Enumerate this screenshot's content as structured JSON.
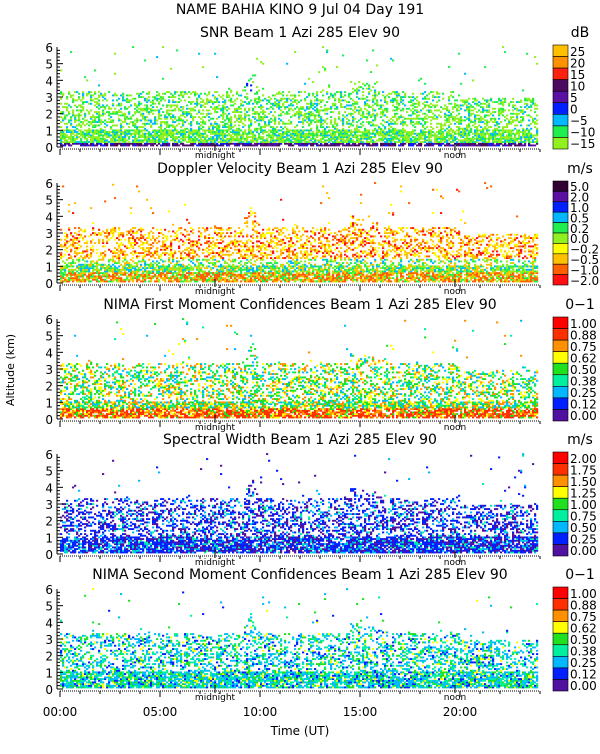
{
  "chart_data": {
    "type": "heatmap",
    "title": "NAME BAHIA KINO    9 Jul 04 Day 191",
    "xlabel": "Time (UT)",
    "ylabel": "Altitude (km)",
    "xlim": [
      0,
      24
    ],
    "ylim": [
      0,
      6
    ],
    "x_ticks": [
      "00:00",
      "05:00",
      "10:00",
      "15:00",
      "20:00"
    ],
    "x_tick_values": [
      0,
      5,
      10,
      15,
      20
    ],
    "y_ticks": [
      "0",
      "1",
      "2",
      "3",
      "4",
      "5",
      "6"
    ],
    "local_markers": [
      {
        "label": "midnight",
        "time": 7.75
      },
      {
        "label": "noon",
        "time": 19.75
      }
    ],
    "panels": [
      {
        "title": "SNR Beam 1 Azi 285 Elev 90",
        "units": "dB",
        "levels": [
          "25",
          "20",
          "15",
          "10",
          "5",
          "0",
          "−5",
          "−10",
          "−15"
        ],
        "colors": [
          "#ffc000",
          "#ff9000",
          "#ff2010",
          "#4a0a60",
          "#5a10a0",
          "#0020ff",
          "#00b8ff",
          "#20ee50",
          "#90f020"
        ]
      },
      {
        "title": "Doppler Velocity Beam 1 Azi 285 Elev 90",
        "units": "m/s",
        "levels": [
          "5.0",
          "2.0",
          "1.0",
          "0.5",
          "0.2",
          "0.0",
          "−0.2",
          "−0.5",
          "−1.0",
          "−2.0"
        ],
        "colors": [
          "#300030",
          "#5a10a0",
          "#0020ff",
          "#00b8ff",
          "#20ee50",
          "#90f020",
          "#ffff00",
          "#ffc000",
          "#ff6000",
          "#ff1010"
        ]
      },
      {
        "title": "NIMA First Moment Confidences Beam 1 Azi 285 Elev 90",
        "units": "0−1",
        "levels": [
          "1.00",
          "0.88",
          "0.75",
          "0.62",
          "0.50",
          "0.38",
          "0.25",
          "0.12",
          "0.00"
        ],
        "colors": [
          "#ff0000",
          "#ff3000",
          "#ff9000",
          "#ffff00",
          "#20e020",
          "#00f0a0",
          "#00b8ff",
          "#0020ff",
          "#5010a0"
        ]
      },
      {
        "title": "Spectral Width Beam 1 Azi 285 Elev 90",
        "units": "m/s",
        "levels": [
          "2.00",
          "1.75",
          "1.50",
          "1.25",
          "1.00",
          "0.75",
          "0.50",
          "0.25",
          "0.00"
        ],
        "colors": [
          "#ff0000",
          "#ff3000",
          "#ff9000",
          "#ffff00",
          "#20e020",
          "#00f0a0",
          "#00b8ff",
          "#0020ff",
          "#5010a0"
        ]
      },
      {
        "title": "NIMA Second Moment Confidences Beam 1 Azi 285 Elev 90",
        "units": "0−1",
        "levels": [
          "1.00",
          "0.88",
          "0.75",
          "0.62",
          "0.50",
          "0.38",
          "0.25",
          "0.12",
          "0.00"
        ],
        "colors": [
          "#ff0000",
          "#ff3000",
          "#ff9000",
          "#ffff00",
          "#20e020",
          "#00f0a0",
          "#00b8ff",
          "#0020ff",
          "#5010a0"
        ]
      }
    ]
  }
}
